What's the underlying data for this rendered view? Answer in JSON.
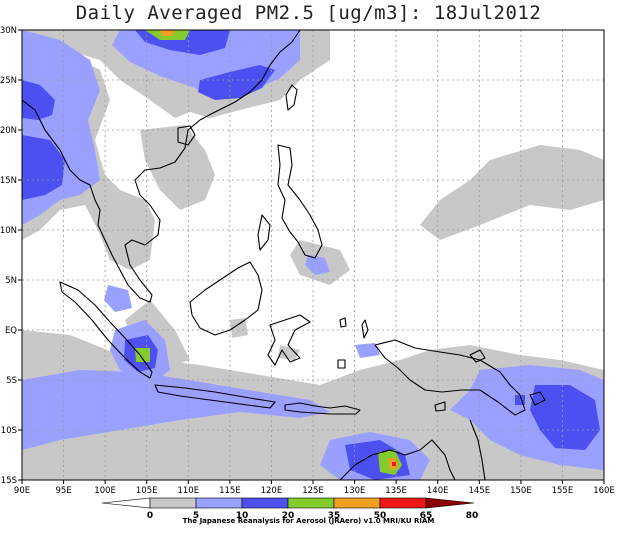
{
  "title": "Daily Averaged PM2.5 [ug/m3]: 18Jul2012",
  "credit": "The Japanese Reanalysis for Aerosol (JRAero) v1.0 MRI/KU RIAM",
  "map": {
    "lon_range": [
      90,
      160
    ],
    "lat_range": [
      -15,
      30
    ],
    "lon_ticks": [
      "90E",
      "95E",
      "100E",
      "105E",
      "110E",
      "115E",
      "120E",
      "125E",
      "130E",
      "135E",
      "140E",
      "145E",
      "150E",
      "155E",
      "160E"
    ],
    "lat_ticks": [
      "30N",
      "25N",
      "20N",
      "15N",
      "10N",
      "5N",
      "EQ",
      "5S",
      "10S",
      "15S"
    ],
    "grid": true
  },
  "colorbar": {
    "labels": [
      "0",
      "5",
      "10",
      "20",
      "35",
      "50",
      "65",
      "80"
    ],
    "colors": [
      "#ffffff",
      "#c8c8c8",
      "#9aa0ff",
      "#4c50f0",
      "#84cc2c",
      "#f0a020",
      "#f01818",
      "#8c0000"
    ]
  }
}
